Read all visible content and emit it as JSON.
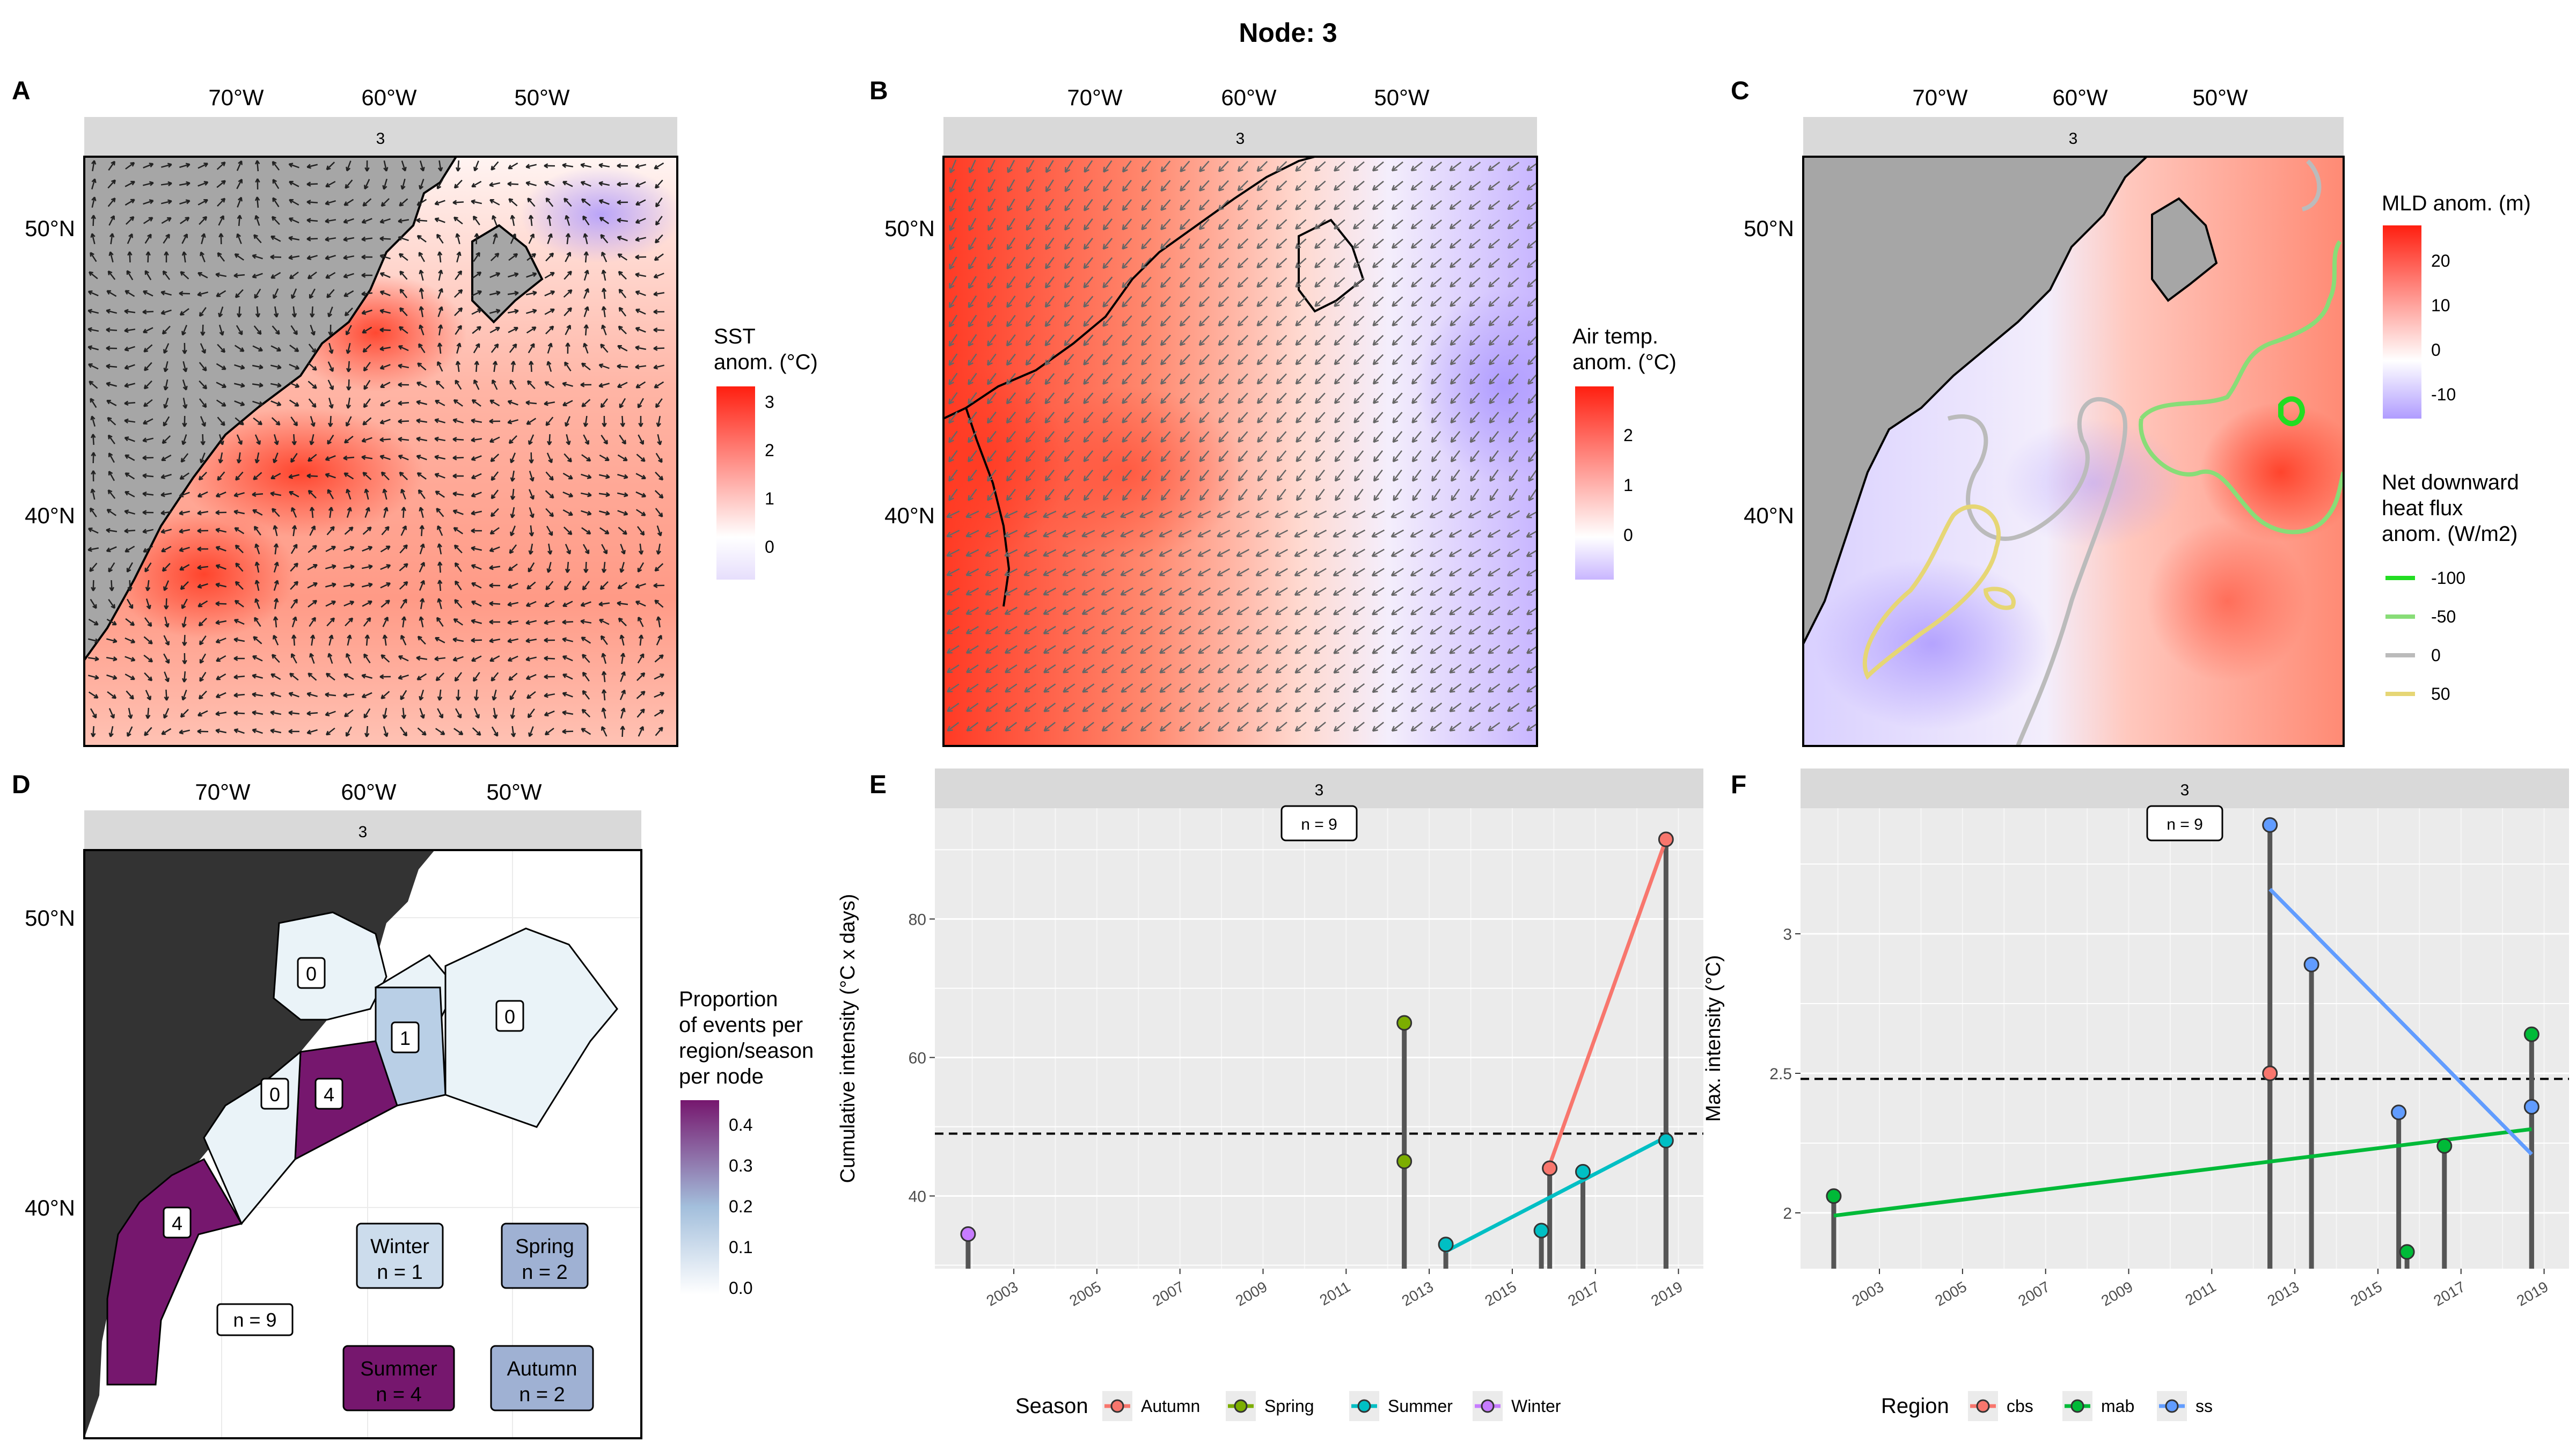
{
  "title": "Node: 3",
  "colors": {
    "strip_bg": "#d9d9d9",
    "panel_bg": "#ebebeb",
    "land": "#a6a6a6",
    "land_dark": "#333333",
    "warm": "#ff2a1a",
    "cool": "#b9a8ff",
    "autumn": "#F8766D",
    "spring": "#7CAE00",
    "summer": "#00BFC4",
    "winter": "#C77CFF",
    "cbs": "#F8766D",
    "mab": "#00BA38",
    "ss": "#619CFF"
  },
  "map_axes": {
    "x_ticks": [
      "70°W",
      "60°W",
      "50°W"
    ],
    "y_ticks": [
      "50°N",
      "40°N"
    ]
  },
  "panels": {
    "A": {
      "letter": "A",
      "strip": "3",
      "legend_title": [
        "SST",
        "anom. (°C)"
      ],
      "legend_ticks": [
        "3",
        "2",
        "1",
        "0"
      ]
    },
    "B": {
      "letter": "B",
      "strip": "3",
      "legend_title": [
        "Air temp.",
        "anom. (°C)"
      ],
      "legend_ticks": [
        "2",
        "1",
        "0"
      ]
    },
    "C": {
      "letter": "C",
      "strip": "3",
      "legend_title": [
        "MLD anom. (m)"
      ],
      "legend_ticks": [
        "20",
        "10",
        "0",
        "-10"
      ],
      "legend2_title": [
        "Net downward",
        "heat flux",
        "anom. (W/m2)"
      ],
      "legend2_items": [
        {
          "label": "-100",
          "color": "#22dd22"
        },
        {
          "label": "-50",
          "color": "#88dd77"
        },
        {
          "label": "0",
          "color": "#bbbbbb"
        },
        {
          "label": "50",
          "color": "#e6d675"
        }
      ]
    },
    "D": {
      "letter": "D",
      "strip": "3",
      "legend_title": [
        "Proportion",
        "of events per",
        "region/season",
        "per node"
      ],
      "legend_ticks": [
        "0.4",
        "0.3",
        "0.2",
        "0.1",
        "0.0"
      ],
      "region_labels": [
        "0",
        "0",
        "1",
        "0",
        "4",
        "4"
      ],
      "n_total": "n = 9",
      "seasons": [
        {
          "name": "Winter",
          "n": "n = 1",
          "proportion": 0.11
        },
        {
          "name": "Spring",
          "n": "n = 2",
          "proportion": 0.22
        },
        {
          "name": "Summer",
          "n": "n = 4",
          "proportion": 0.44
        },
        {
          "name": "Autumn",
          "n": "n = 2",
          "proportion": 0.22
        }
      ]
    },
    "E": {
      "letter": "E",
      "strip": "3",
      "n_label": "n = 9"
    },
    "F": {
      "letter": "F",
      "strip": "3",
      "n_label": "n = 9"
    }
  },
  "chart_data": [
    {
      "panel": "E",
      "type": "scatter",
      "style": "lollipop",
      "ylabel": "Cumulative intensity (°C x days)",
      "x_ticks": [
        "2003",
        "2005",
        "2007",
        "2009",
        "2011",
        "2013",
        "2015",
        "2017",
        "2019"
      ],
      "y_ticks": [
        40,
        60,
        80
      ],
      "xlim": [
        2001.1,
        2019.6
      ],
      "ylim": [
        29.5,
        96
      ],
      "hline": 49,
      "grid": true,
      "legend_title": "Season",
      "legend_position": "bottom",
      "legend": [
        "Autumn",
        "Spring",
        "Summer",
        "Winter"
      ],
      "points": [
        {
          "x": 2001.9,
          "y": 34.5,
          "series": "Winter"
        },
        {
          "x": 2012.4,
          "y": 65.0,
          "series": "Spring"
        },
        {
          "x": 2012.4,
          "y": 45.0,
          "series": "Spring"
        },
        {
          "x": 2013.4,
          "y": 33.0,
          "series": "Summer"
        },
        {
          "x": 2015.7,
          "y": 35.0,
          "series": "Summer"
        },
        {
          "x": 2015.9,
          "y": 44.0,
          "series": "Autumn"
        },
        {
          "x": 2016.7,
          "y": 43.5,
          "series": "Summer"
        },
        {
          "x": 2018.7,
          "y": 48.0,
          "series": "Summer"
        },
        {
          "x": 2018.7,
          "y": 91.5,
          "series": "Autumn"
        }
      ],
      "trend_lines": [
        {
          "series": "Autumn",
          "x": [
            2015.9,
            2018.7
          ],
          "y": [
            44.5,
            91.5
          ]
        },
        {
          "series": "Summer",
          "x": [
            2013.4,
            2018.7
          ],
          "y": [
            32.0,
            48.5
          ]
        }
      ]
    },
    {
      "panel": "F",
      "type": "scatter",
      "style": "lollipop",
      "ylabel": "Max. intensity (°C)",
      "x_ticks": [
        "2003",
        "2005",
        "2007",
        "2009",
        "2011",
        "2013",
        "2015",
        "2017",
        "2019"
      ],
      "y_ticks": [
        2.0,
        2.5,
        3.0
      ],
      "xlim": [
        2001.1,
        2019.6
      ],
      "ylim": [
        1.8,
        3.45
      ],
      "hline": 2.48,
      "grid": true,
      "legend_title": "Region",
      "legend_position": "bottom",
      "legend": [
        "cbs",
        "mab",
        "ss"
      ],
      "points": [
        {
          "x": 2001.9,
          "y": 2.06,
          "series": "mab"
        },
        {
          "x": 2012.4,
          "y": 3.39,
          "series": "ss"
        },
        {
          "x": 2012.4,
          "y": 2.5,
          "series": "cbs"
        },
        {
          "x": 2013.4,
          "y": 2.89,
          "series": "ss"
        },
        {
          "x": 2015.5,
          "y": 2.36,
          "series": "ss"
        },
        {
          "x": 2015.7,
          "y": 1.86,
          "series": "mab"
        },
        {
          "x": 2016.6,
          "y": 2.24,
          "series": "mab"
        },
        {
          "x": 2018.7,
          "y": 2.64,
          "series": "mab"
        },
        {
          "x": 2018.7,
          "y": 2.38,
          "series": "ss"
        }
      ],
      "trend_lines": [
        {
          "series": "mab",
          "x": [
            2001.9,
            2018.7
          ],
          "y": [
            1.99,
            2.3
          ]
        },
        {
          "series": "ss",
          "x": [
            2012.4,
            2018.7
          ],
          "y": [
            3.16,
            2.21
          ]
        }
      ]
    }
  ]
}
